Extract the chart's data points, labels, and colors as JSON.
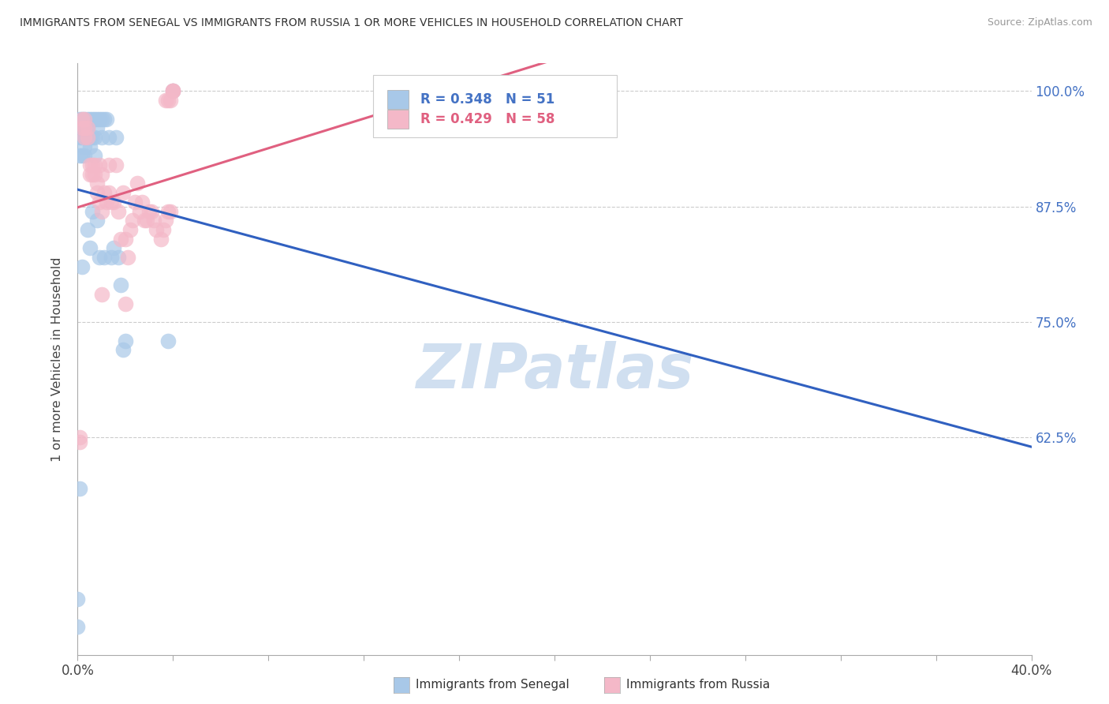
{
  "title": "IMMIGRANTS FROM SENEGAL VS IMMIGRANTS FROM RUSSIA 1 OR MORE VEHICLES IN HOUSEHOLD CORRELATION CHART",
  "source": "Source: ZipAtlas.com",
  "ylabel": "1 or more Vehicles in Household",
  "color_senegal": "#a8c8e8",
  "color_russia": "#f4b8c8",
  "color_line_senegal": "#3060c0",
  "color_line_russia": "#e06080",
  "background_color": "#ffffff",
  "watermark_color": "#d0dff0",
  "ytick_vals": [
    1.0,
    0.875,
    0.75,
    0.625
  ],
  "ytick_labels": [
    "100.0%",
    "87.5%",
    "75.0%",
    "62.5%"
  ],
  "ymin": 0.39,
  "ymax": 1.03,
  "xmin": 0.0,
  "xmax": 0.4,
  "legend_text_1": "R = 0.348",
  "legend_text_2": "R = 0.429",
  "legend_n1": "N = 51",
  "legend_n2": "N = 58",
  "senegal_x": [
    0.0,
    0.0,
    0.001,
    0.001,
    0.001,
    0.001,
    0.001,
    0.002,
    0.002,
    0.002,
    0.002,
    0.002,
    0.003,
    0.003,
    0.003,
    0.003,
    0.003,
    0.004,
    0.004,
    0.004,
    0.004,
    0.005,
    0.005,
    0.005,
    0.005,
    0.006,
    0.006,
    0.006,
    0.007,
    0.007,
    0.007,
    0.008,
    0.008,
    0.008,
    0.009,
    0.009,
    0.01,
    0.01,
    0.011,
    0.011,
    0.012,
    0.013,
    0.014,
    0.015,
    0.016,
    0.017,
    0.018,
    0.019,
    0.02,
    0.04,
    0.038
  ],
  "senegal_y": [
    0.42,
    0.45,
    0.97,
    0.96,
    0.95,
    0.93,
    0.57,
    0.97,
    0.96,
    0.95,
    0.93,
    0.81,
    0.97,
    0.96,
    0.95,
    0.94,
    0.93,
    0.97,
    0.96,
    0.95,
    0.85,
    0.97,
    0.95,
    0.94,
    0.83,
    0.97,
    0.95,
    0.87,
    0.97,
    0.95,
    0.93,
    0.97,
    0.96,
    0.86,
    0.97,
    0.82,
    0.97,
    0.95,
    0.97,
    0.82,
    0.97,
    0.95,
    0.82,
    0.83,
    0.95,
    0.82,
    0.79,
    0.72,
    0.73,
    1.0,
    0.73
  ],
  "russia_x": [
    0.001,
    0.001,
    0.002,
    0.002,
    0.003,
    0.003,
    0.003,
    0.004,
    0.004,
    0.005,
    0.005,
    0.006,
    0.006,
    0.007,
    0.007,
    0.008,
    0.008,
    0.009,
    0.009,
    0.01,
    0.01,
    0.011,
    0.012,
    0.013,
    0.013,
    0.014,
    0.015,
    0.016,
    0.017,
    0.018,
    0.019,
    0.02,
    0.021,
    0.022,
    0.023,
    0.024,
    0.025,
    0.026,
    0.027,
    0.028,
    0.029,
    0.03,
    0.031,
    0.032,
    0.033,
    0.035,
    0.036,
    0.037,
    0.038,
    0.039,
    0.04,
    0.04,
    0.04,
    0.039,
    0.038,
    0.037,
    0.02,
    0.01
  ],
  "russia_y": [
    0.62,
    0.625,
    0.97,
    0.96,
    0.97,
    0.96,
    0.95,
    0.96,
    0.95,
    0.91,
    0.92,
    0.92,
    0.91,
    0.92,
    0.91,
    0.9,
    0.89,
    0.88,
    0.92,
    0.87,
    0.91,
    0.89,
    0.88,
    0.89,
    0.92,
    0.88,
    0.88,
    0.92,
    0.87,
    0.84,
    0.89,
    0.84,
    0.82,
    0.85,
    0.86,
    0.88,
    0.9,
    0.87,
    0.88,
    0.86,
    0.86,
    0.87,
    0.87,
    0.86,
    0.85,
    0.84,
    0.85,
    0.86,
    0.87,
    0.87,
    1.0,
    1.0,
    1.0,
    0.99,
    0.99,
    0.99,
    0.77,
    0.78
  ]
}
